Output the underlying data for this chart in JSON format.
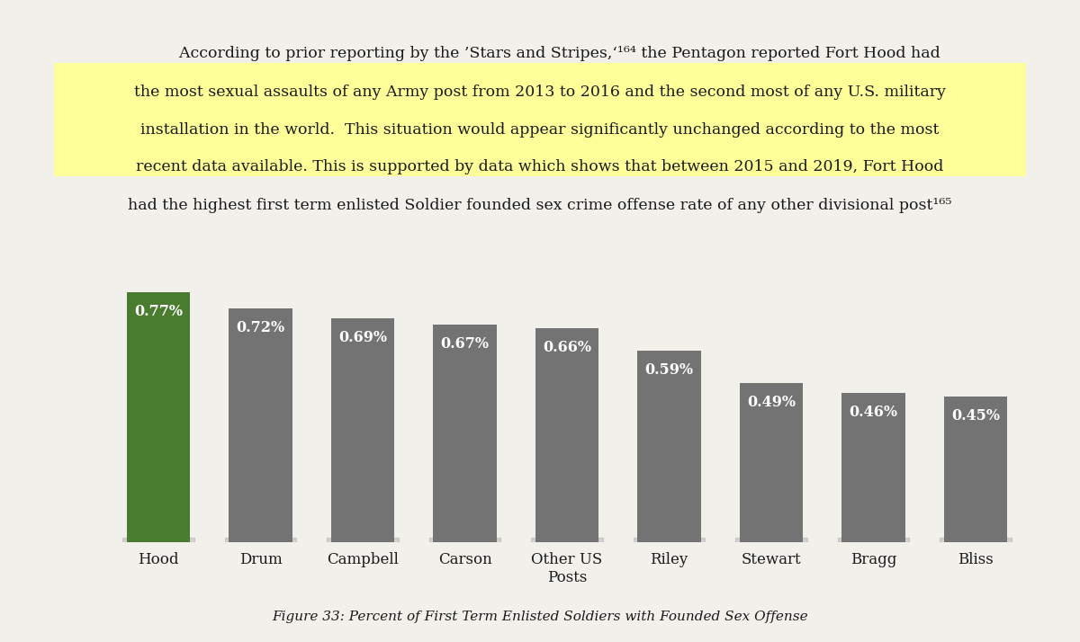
{
  "categories": [
    "Hood",
    "Drum",
    "Campbell",
    "Carson",
    "Other US\nPosts",
    "Riley",
    "Stewart",
    "Bragg",
    "Bliss"
  ],
  "values": [
    0.77,
    0.72,
    0.69,
    0.67,
    0.66,
    0.59,
    0.49,
    0.46,
    0.45
  ],
  "labels": [
    "0.77%",
    "0.72%",
    "0.69%",
    "0.67%",
    "0.66%",
    "0.59%",
    "0.49%",
    "0.46%",
    "0.45%"
  ],
  "bar_colors": [
    "#4a7c2f",
    "#737373",
    "#737373",
    "#737373",
    "#737373",
    "#737373",
    "#737373",
    "#737373",
    "#737373"
  ],
  "background_color": "#f2f0eb",
  "text_color": "#1a1a1a",
  "label_color": "#ffffff",
  "figure_caption": "Figure 33: Percent of First Term Enlisted Soldiers with Founded Sex Offense",
  "caption_fontsize": 11,
  "bar_label_fontsize": 11.5,
  "tick_fontsize": 12,
  "ylim": [
    0,
    0.9
  ],
  "highlight_color": "#ffff99"
}
